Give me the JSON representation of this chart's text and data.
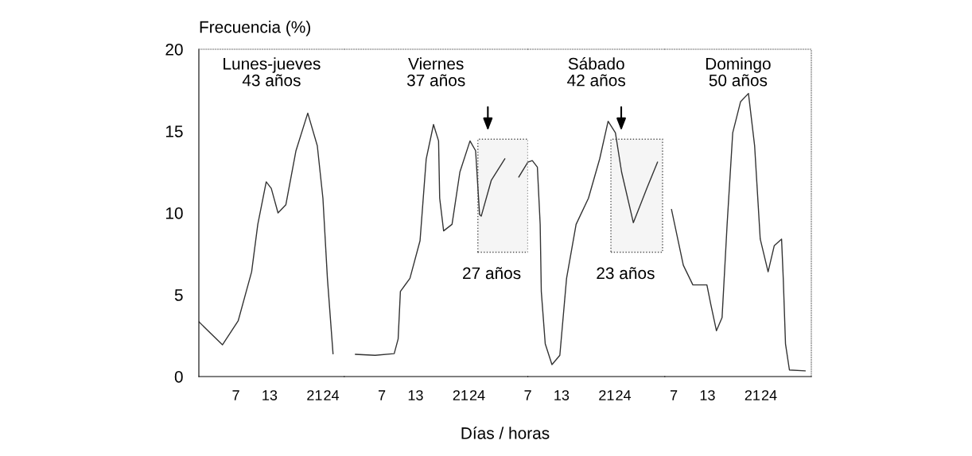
{
  "chart_data": [
    {
      "type": "line",
      "title": "Lunes-jueves\n43 años",
      "ylabel": "Frecuencia (%)",
      "xlim": [
        0.4,
        26.3
      ],
      "ylim": [
        0,
        20
      ],
      "yticks": [
        0,
        5,
        10,
        15,
        20
      ],
      "xticks": [
        7,
        13,
        21,
        24
      ],
      "series": [
        {
          "color": "#333333",
          "x": [
            0.4,
            4.6,
            7.4,
            9.8,
            10.9,
            12.4,
            13.3,
            14.5,
            15.9,
            17.7,
            19.8,
            21.5,
            22.5,
            23.3,
            24.3
          ],
          "values": [
            3.35,
            1.94,
            3.4,
            6.4,
            9.3,
            11.9,
            11.5,
            10.0,
            10.5,
            13.8,
            16.1,
            14.1,
            10.9,
            6.0,
            1.4
          ]
        }
      ],
      "grid": false,
      "legend": false
    },
    {
      "type": "line",
      "title": "Viernes\n37 años",
      "xlabel": "Días / horas",
      "xlim": [
        0.3,
        33.0
      ],
      "ylim": [
        0,
        20
      ],
      "yticks": [
        0,
        5,
        10,
        15,
        20
      ],
      "xticks": [
        7,
        13,
        21,
        24
      ],
      "tick_labels": "x",
      "series": [
        {
          "color": "#333333",
          "x": [
            2.3,
            5.8,
            9.2,
            9.9,
            10.3,
            12.0,
            13.8,
            14.9,
            16.2,
            17.1,
            17.3,
            18.0,
            19.5,
            20.9,
            22.7,
            23.7,
            24.4,
            24.7,
            26.5,
            28.9
          ],
          "values": [
            1.36,
            1.3,
            1.4,
            2.3,
            5.2,
            6.0,
            8.3,
            13.3,
            15.4,
            14.4,
            10.9,
            8.9,
            9.3,
            12.5,
            14.4,
            13.8,
            9.9,
            9.8,
            12.0,
            13.3
          ]
        },
        {
          "color": "#333333",
          "x": [
            31.4,
            33.0
          ],
          "values": [
            12.2,
            13.1
          ]
        }
      ],
      "bands": [
        {
          "axis": "x",
          "from": 24.1,
          "to": 33.0,
          "label": "27 años",
          "color": "#555555"
        }
      ],
      "grid": false,
      "legend": false
    },
    {
      "type": "line",
      "title": "Sábado\n42 años",
      "xlim": [
        7.0,
        31.4
      ],
      "ylim": [
        0,
        20
      ],
      "yticks": [
        0,
        5,
        10,
        15,
        20
      ],
      "xticks": [
        7,
        13,
        21,
        24
      ],
      "tick_labels": "x",
      "series": [
        {
          "color": "#333333",
          "x": [
            7.0,
            7.8,
            8.7,
            9.2,
            9.4,
            10.1,
            11.3,
            12.7,
            13.9,
            15.6,
            17.8,
            19.8,
            21.3,
            22.6,
            23.7,
            25.8,
            28.2,
            30.1
          ],
          "values": [
            13.1,
            13.2,
            12.8,
            9.3,
            5.2,
            2.0,
            0.73,
            1.3,
            6.0,
            9.3,
            10.9,
            13.3,
            15.6,
            14.9,
            12.5,
            9.4,
            11.5,
            13.1
          ]
        }
      ],
      "bands": [
        {
          "axis": "x",
          "from": 21.8,
          "to": 31.0,
          "label": "23 años",
          "color": "#555555"
        }
      ],
      "grid": false,
      "legend": false
    },
    {
      "type": "line",
      "title": "Domingo\n50 años",
      "xlim": [
        5.4,
        31.5
      ],
      "ylim": [
        0,
        20
      ],
      "yticks": [
        0,
        5,
        10,
        15,
        20
      ],
      "xticks": [
        7,
        13,
        21,
        24
      ],
      "tick_labels": "x",
      "series": [
        {
          "color": "#333333",
          "x": [
            6.6,
            8.7,
            10.4,
            12.9,
            13.6,
            14.6,
            15.6,
            16.5,
            17.5,
            18.9,
            20.3,
            21.4,
            22.4,
            23.8,
            24.9,
            26.2,
            26.5,
            26.9,
            27.6,
            30.4
          ],
          "values": [
            10.2,
            6.8,
            5.6,
            5.6,
            4.4,
            2.8,
            3.6,
            9.3,
            14.9,
            16.8,
            17.3,
            14.1,
            8.4,
            6.4,
            8.0,
            8.4,
            6.0,
            2.0,
            0.4,
            0.35
          ]
        }
      ],
      "grid": false,
      "legend": false
    }
  ]
}
